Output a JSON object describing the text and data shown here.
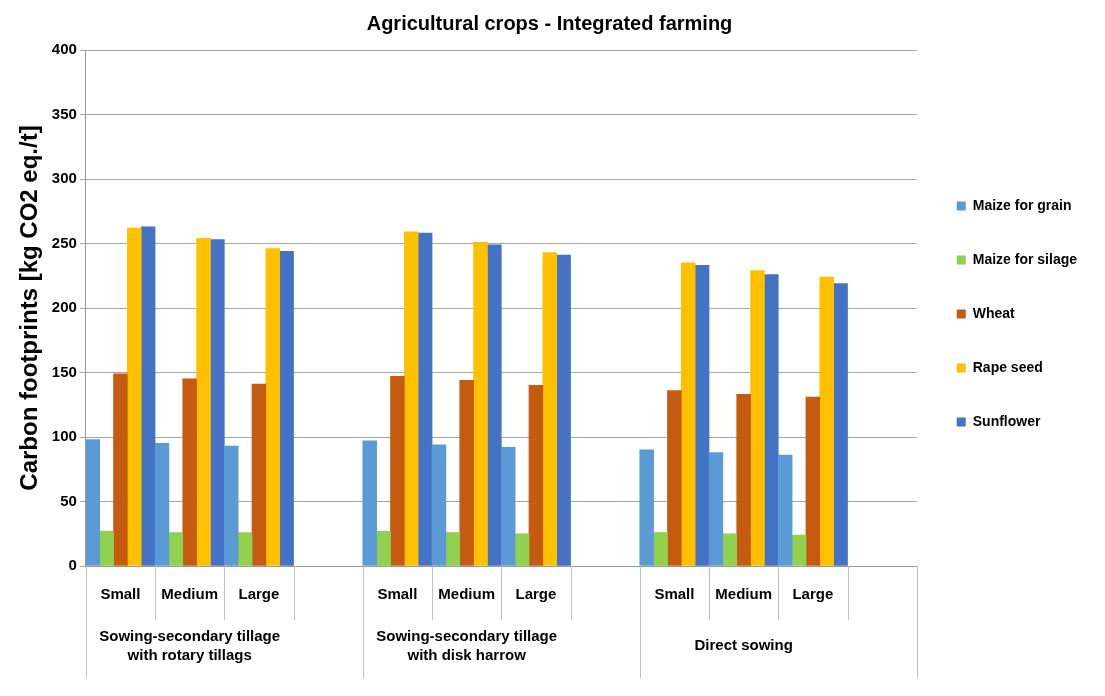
{
  "chart_data": {
    "type": "bar",
    "title": "Agricultural crops - Integrated farming",
    "ylabel": "Carbon footprints [kg CO2 eq./t]",
    "categories": [
      "Small",
      "Medium",
      "Large",
      null,
      "Small",
      "Medium",
      "Large",
      null,
      "Small",
      "Medium",
      "Large",
      null
    ],
    "series": [
      {
        "name": "Maize for grain",
        "color": "#5b9bd5",
        "values": [
          98,
          95,
          93,
          null,
          97,
          94,
          92,
          null,
          90,
          88,
          86,
          null
        ]
      },
      {
        "name": "Maize for silage",
        "color": "#92d050",
        "values": [
          27,
          26,
          26,
          null,
          27,
          26,
          25,
          null,
          26,
          25,
          24,
          null
        ]
      },
      {
        "name": "Wheat",
        "color": "#c55a11",
        "values": [
          149,
          145,
          141,
          null,
          147,
          144,
          140,
          null,
          136,
          133,
          131,
          null
        ]
      },
      {
        "name": "Rape seed",
        "color": "#ffc000",
        "values": [
          262,
          254,
          246,
          null,
          259,
          251,
          243,
          null,
          235,
          229,
          224,
          null
        ]
      },
      {
        "name": "Sunflower",
        "color": "#4472c4",
        "values": [
          263,
          253,
          244,
          null,
          258,
          249,
          241,
          null,
          233,
          226,
          219,
          null
        ]
      }
    ],
    "annotations": [
      "Sowing-secondary tillage with rotary tillags",
      "Sowing-secondary tillage with disk harrow",
      "Direct sowing"
    ],
    "ylim": [
      0,
      400
    ],
    "yticks": [
      0,
      50,
      100,
      150,
      200,
      250,
      300,
      350,
      400
    ],
    "grid": "y",
    "legend": "right"
  }
}
